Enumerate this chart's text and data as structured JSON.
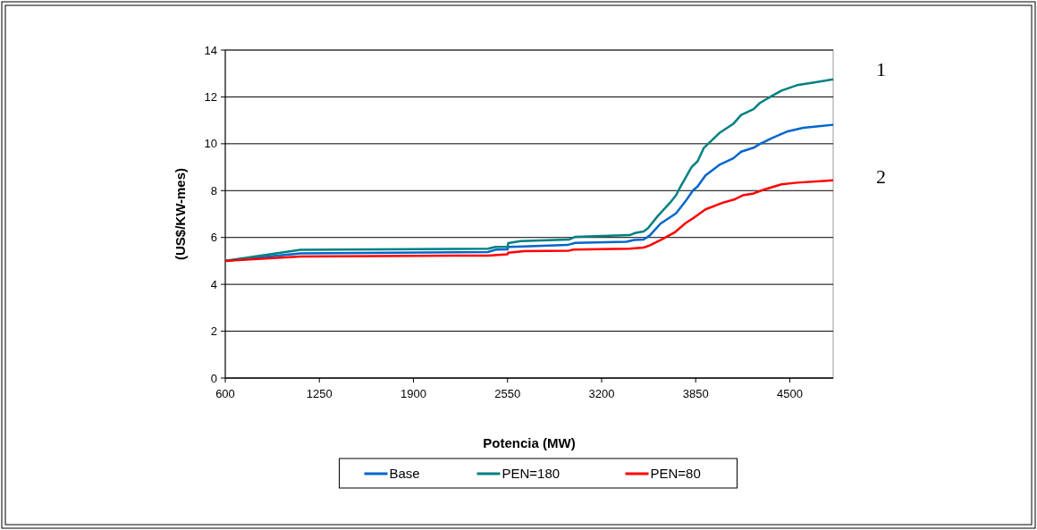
{
  "chart_data": {
    "type": "line",
    "xlabel": "Potencia (MW)",
    "ylabel": "(US$/KW-mes)",
    "xlim": [
      600,
      4800
    ],
    "xticks": [
      600,
      1250,
      1900,
      2550,
      3200,
      3850,
      4500
    ],
    "ylim": [
      0,
      14
    ],
    "yticks": [
      0,
      2,
      4,
      6,
      8,
      10,
      12,
      14
    ],
    "grid": "y",
    "legend": "bottom",
    "line_style": "solid",
    "marker": "none",
    "annotations": [
      "1",
      "2"
    ],
    "series": [
      {
        "name": "Base",
        "color": "#0066cc",
        "x": [
          600,
          1119,
          2415,
          2469,
          2550,
          2555,
          2664,
          2964,
          3018,
          3371,
          3425,
          3490,
          3532,
          3607,
          3714,
          3779,
          3832,
          3864,
          3918,
          4014,
          4110,
          4164,
          4250,
          4293,
          4379,
          4486,
          4593,
          4700,
          4800
        ],
        "values": [
          5.0,
          5.32,
          5.38,
          5.48,
          5.49,
          5.6,
          5.62,
          5.68,
          5.77,
          5.82,
          5.89,
          5.91,
          6.08,
          6.59,
          7.03,
          7.54,
          8.01,
          8.18,
          8.65,
          9.1,
          9.38,
          9.66,
          9.83,
          9.99,
          10.25,
          10.53,
          10.68,
          10.75,
          10.81
        ]
      },
      {
        "name": "PEN=180",
        "color": "#008080",
        "x": [
          600,
          1119,
          2415,
          2469,
          2550,
          2555,
          2640,
          2975,
          3018,
          3393,
          3436,
          3490,
          3521,
          3586,
          3671,
          3714,
          3746,
          3821,
          3864,
          3907,
          4014,
          4110,
          4164,
          4250,
          4293,
          4379,
          4443,
          4550,
          4679,
          4800
        ],
        "values": [
          5.0,
          5.47,
          5.52,
          5.6,
          5.6,
          5.76,
          5.85,
          5.91,
          6.03,
          6.1,
          6.2,
          6.26,
          6.4,
          6.9,
          7.47,
          7.8,
          8.18,
          9.0,
          9.26,
          9.83,
          10.46,
          10.85,
          11.23,
          11.48,
          11.74,
          12.05,
          12.27,
          12.5,
          12.63,
          12.75
        ]
      },
      {
        "name": "PEN=80",
        "color": "#ff0000",
        "x": [
          600,
          1119,
          2415,
          2550,
          2555,
          2664,
          2975,
          3007,
          3393,
          3490,
          3532,
          3607,
          3704,
          3779,
          3832,
          3918,
          4036,
          4121,
          4175,
          4250,
          4325,
          4443,
          4550,
          4800
        ],
        "values": [
          5.0,
          5.19,
          5.23,
          5.28,
          5.35,
          5.42,
          5.44,
          5.48,
          5.52,
          5.57,
          5.66,
          5.89,
          6.21,
          6.61,
          6.82,
          7.2,
          7.48,
          7.63,
          7.8,
          7.88,
          8.05,
          8.27,
          8.34,
          8.44
        ]
      }
    ]
  }
}
